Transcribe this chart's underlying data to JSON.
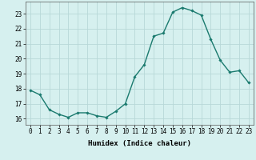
{
  "x": [
    0,
    1,
    2,
    3,
    4,
    5,
    6,
    7,
    8,
    9,
    10,
    11,
    12,
    13,
    14,
    15,
    16,
    17,
    18,
    19,
    20,
    21,
    22,
    23
  ],
  "y": [
    17.9,
    17.6,
    16.6,
    16.3,
    16.1,
    16.4,
    16.4,
    16.2,
    16.1,
    16.5,
    17.0,
    18.8,
    19.6,
    21.5,
    21.7,
    23.1,
    23.4,
    23.2,
    22.9,
    21.3,
    19.9,
    19.1,
    19.2,
    18.4
  ],
  "line_color": "#1a7a6e",
  "marker": "D",
  "marker_size": 1.8,
  "bg_color": "#d6f0ef",
  "grid_major_color": "#c0dedd",
  "grid_minor_color": "#c0dedd",
  "xlabel": "Humidex (Indice chaleur)",
  "xlim": [
    -0.5,
    23.5
  ],
  "ylim": [
    15.6,
    23.8
  ],
  "yticks": [
    16,
    17,
    18,
    19,
    20,
    21,
    22,
    23
  ],
  "xticks": [
    0,
    1,
    2,
    3,
    4,
    5,
    6,
    7,
    8,
    9,
    10,
    11,
    12,
    13,
    14,
    15,
    16,
    17,
    18,
    19,
    20,
    21,
    22,
    23
  ],
  "xlabel_fontsize": 6.5,
  "tick_fontsize": 5.5,
  "line_width": 1.0
}
